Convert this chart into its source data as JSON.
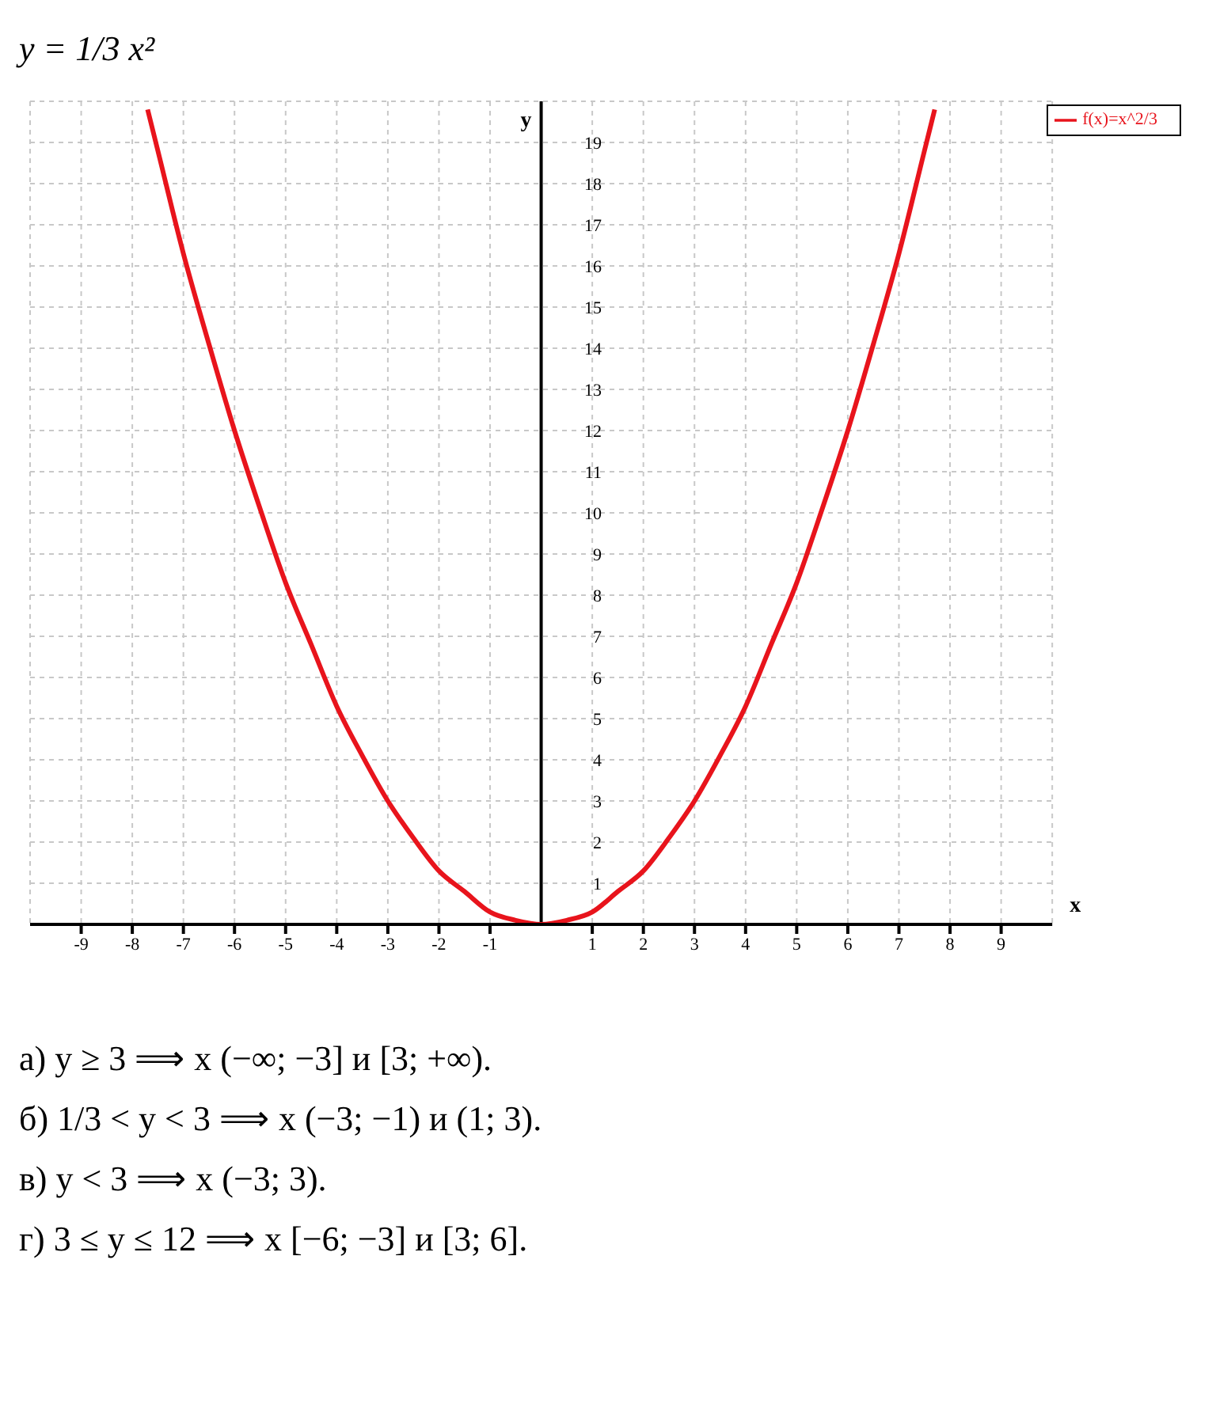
{
  "chart_data": {
    "type": "line",
    "title": "y = 1/3 x²",
    "xlabel": "x",
    "ylabel": "y",
    "x": [
      -7.7,
      -7.5,
      -7,
      -6.5,
      -6,
      -5.5,
      -5,
      -4.5,
      -4,
      -3.5,
      -3,
      -2.5,
      -2,
      -1.5,
      -1,
      -0.5,
      0,
      0.5,
      1,
      1.5,
      2,
      2.5,
      3,
      3.5,
      4,
      4.5,
      5,
      5.5,
      6,
      6.5,
      7,
      7.5,
      7.7
    ],
    "series": [
      {
        "name": "f(x)=x^2/3",
        "color": "#e8141c",
        "values": [
          19.8,
          18.8,
          16.3,
          14.1,
          12,
          10.1,
          8.3,
          6.8,
          5.3,
          4.1,
          3,
          2.1,
          1.3,
          0.8,
          0.3,
          0.1,
          0,
          0.1,
          0.3,
          0.8,
          1.3,
          2.1,
          3,
          4.1,
          5.3,
          6.8,
          8.3,
          10.1,
          12,
          14.1,
          16.3,
          18.8,
          19.8
        ]
      }
    ],
    "xlim": [
      -10,
      10
    ],
    "ylim": [
      0,
      20
    ],
    "xticks": [
      -9,
      -8,
      -7,
      -6,
      -5,
      -4,
      -3,
      -2,
      -1,
      1,
      2,
      3,
      4,
      5,
      6,
      7,
      8,
      9
    ],
    "yticks": [
      1,
      2,
      3,
      4,
      5,
      6,
      7,
      8,
      9,
      10,
      11,
      12,
      13,
      14,
      15,
      16,
      17,
      18,
      19
    ],
    "grid": true,
    "legend": "top right",
    "marker": "none",
    "line_style": "solid",
    "annotations": [
      "а) y ≥ 3 ⟹ x (−∞; −3] и [3; +∞).",
      "б) 1/3 < y < 3 ⟹ x (−3; −1) и (1; 3).",
      "в) y < 3 ⟹ x (−3; 3).",
      "г) 3 ≤ y ≤ 12 ⟹ x [−6; −3] и [3; 6]."
    ]
  }
}
